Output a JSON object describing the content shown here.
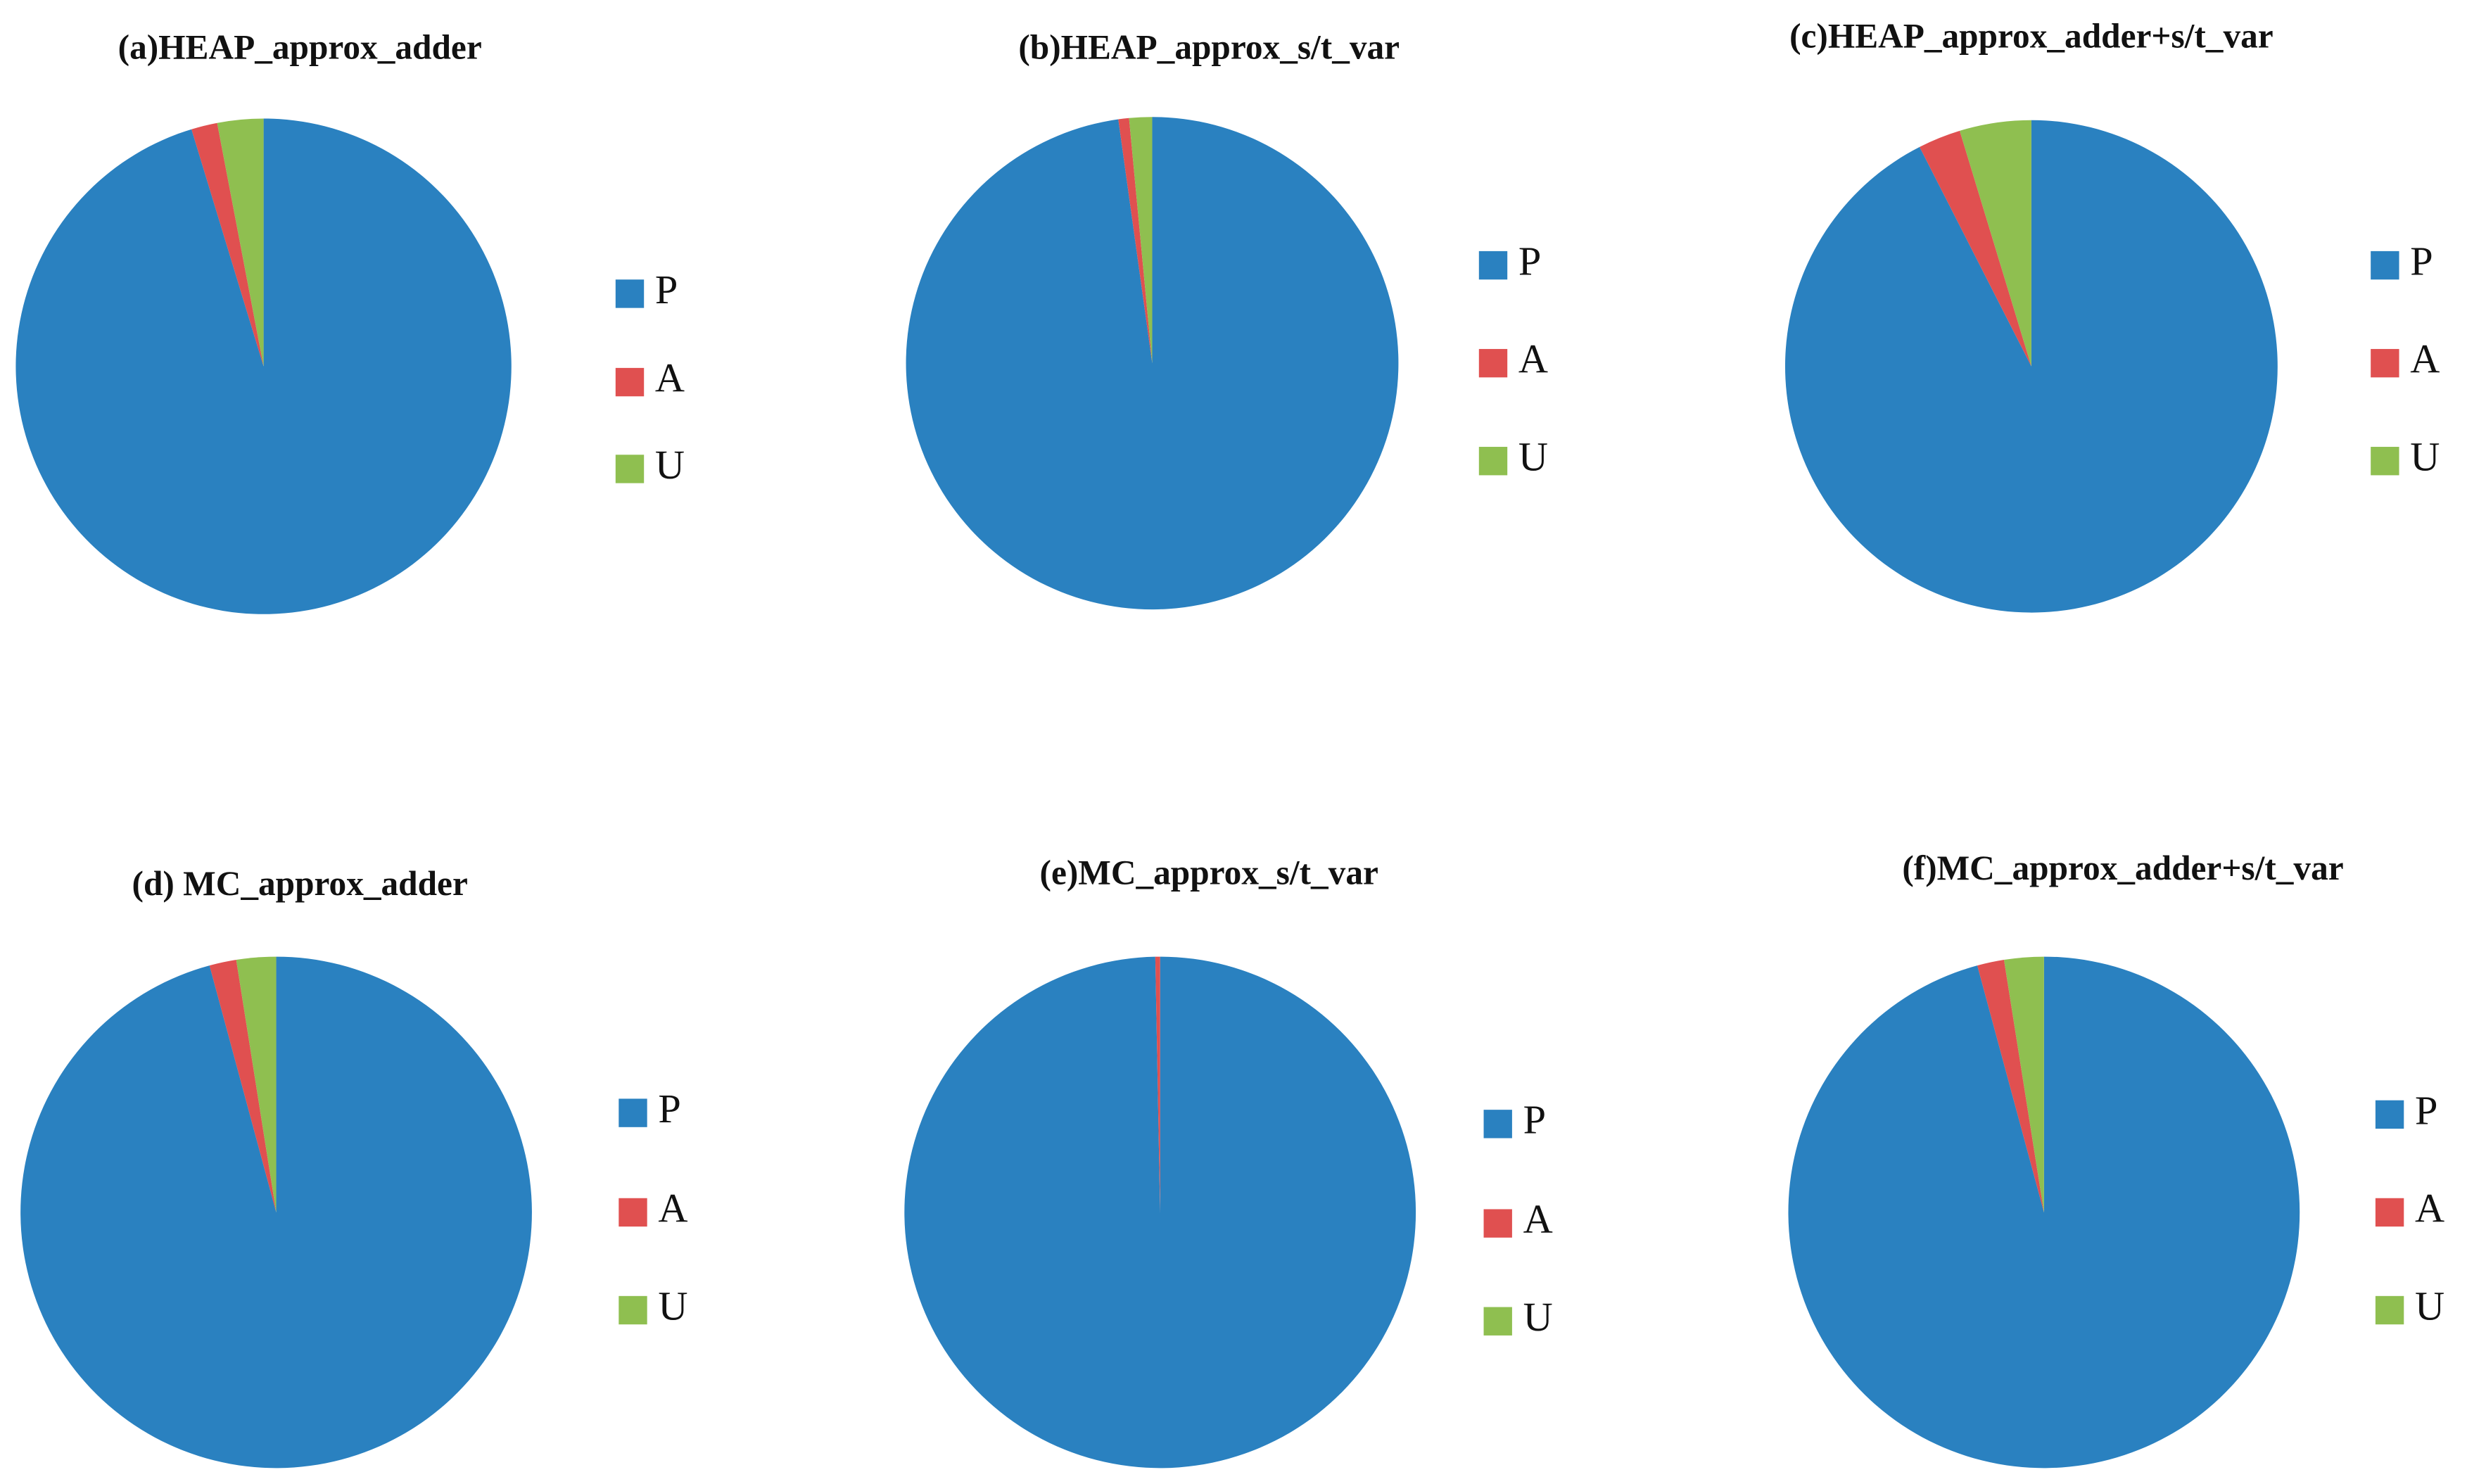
{
  "chart_data": [
    {
      "type": "pie",
      "title": "(a)HEAP_approx_adder",
      "categories": [
        "P",
        "A",
        "U"
      ],
      "values": [
        95.3,
        1.7,
        3
      ],
      "colors": [
        "#2a81c0",
        "#e05050",
        "#8fbf50"
      ]
    },
    {
      "type": "pie",
      "title": "(b)HEAP_approx_s/t_var",
      "categories": [
        "P",
        "A",
        "U"
      ],
      "values": [
        97.8,
        0.7,
        1.5
      ],
      "colors": [
        "#2a81c0",
        "#e05050",
        "#8fbf50"
      ]
    },
    {
      "type": "pie",
      "title": "(c)HEAP_approx_adder+s/t_var",
      "categories": [
        "P",
        "A",
        "U"
      ],
      "values": [
        92.5,
        2.8,
        4.7
      ],
      "colors": [
        "#2a81c0",
        "#e05050",
        "#8fbf50"
      ]
    },
    {
      "type": "pie",
      "title": "(d) MC_approx_adder",
      "categories": [
        "P",
        "A",
        "U"
      ],
      "values": [
        95.8,
        1.7,
        2.5
      ],
      "colors": [
        "#2a81c0",
        "#e05050",
        "#8fbf50"
      ]
    },
    {
      "type": "pie",
      "title": "(e)MC_approx_s/t_var",
      "categories": [
        "P",
        "A",
        "U"
      ],
      "values": [
        99.7,
        0.3,
        0
      ],
      "colors": [
        "#2a81c0",
        "#e05050",
        "#8fbf50"
      ]
    },
    {
      "type": "pie",
      "title": "(f)MC_approx_adder+s/t_var",
      "categories": [
        "P",
        "A",
        "U"
      ],
      "values": [
        95.8,
        1.7,
        2.5
      ],
      "colors": [
        "#2a81c0",
        "#e05050",
        "#8fbf50"
      ]
    }
  ]
}
